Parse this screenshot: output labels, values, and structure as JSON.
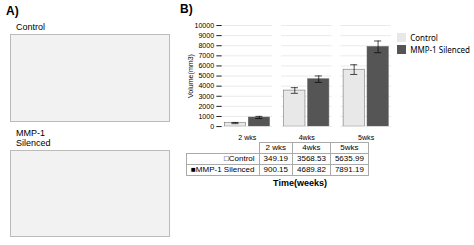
{
  "chart_data": {
    "type": "bar",
    "title": "B)",
    "annotations": [
      "A)",
      "Control",
      "MMP-1\nSilenced"
    ],
    "categories": [
      "2 wks",
      "4wks",
      "5wks"
    ],
    "series": [
      {
        "name": "Control",
        "color": "#e8e8e8",
        "values": [
          349.19,
          3568.53,
          5635.99
        ],
        "errors": [
          60,
          280,
          480
        ]
      },
      {
        "name": "MMP-1 Silenced",
        "color": "#555555",
        "values": [
          900.15,
          4689.82,
          7891.19
        ],
        "errors": [
          110,
          320,
          580
        ]
      }
    ],
    "xlabel": "Time(weeks)",
    "ylabel": "Volume(mm3)",
    "ylim": [
      0,
      10000
    ],
    "yticks": [
      0,
      1000,
      2000,
      3000,
      4000,
      5000,
      6000,
      7000,
      8000,
      9000,
      10000
    ],
    "grid": true,
    "legend": "right",
    "table": {
      "row_labels": [
        "□Control",
        "■MMP-1 Silenced"
      ],
      "rows": [
        [
          "349.19",
          "3568.53",
          "5635.99"
        ],
        [
          "900.15",
          "4689.82",
          "7891.19"
        ]
      ]
    }
  }
}
